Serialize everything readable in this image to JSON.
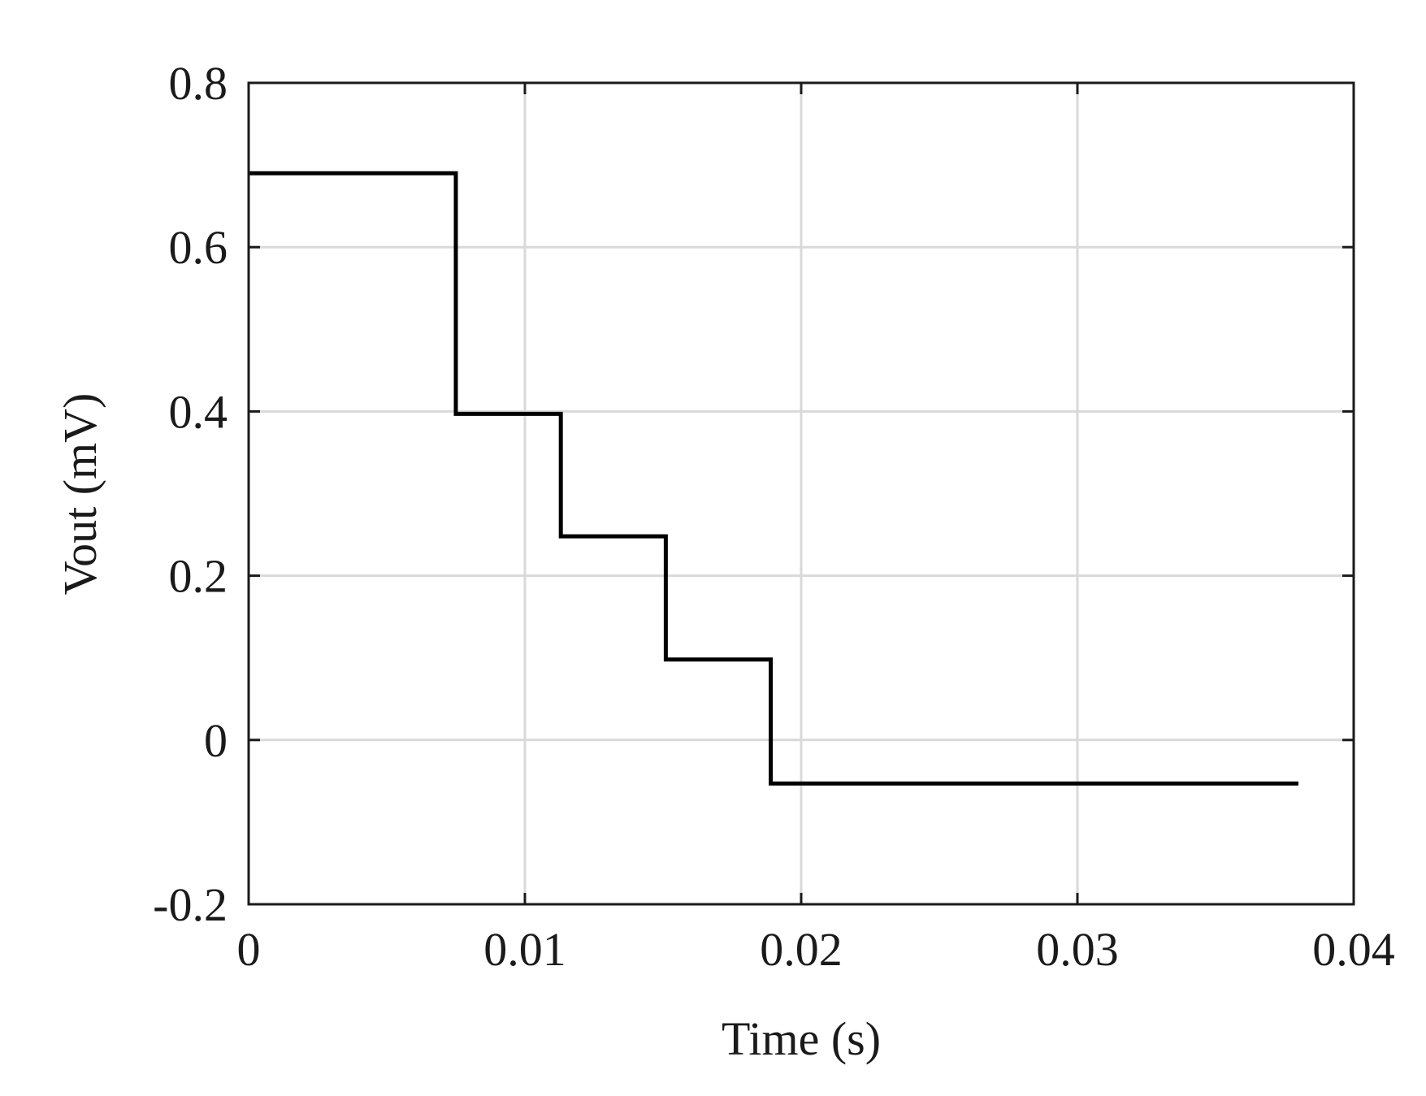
{
  "chart_data": {
    "type": "line",
    "x_label": "Time (s)",
    "y_label": "Vout (mV)",
    "x": [
      0,
      0.0075,
      0.0075,
      0.0113,
      0.0113,
      0.0151,
      0.0151,
      0.0189,
      0.0189,
      0.038
    ],
    "values": [
      0.69,
      0.69,
      0.397,
      0.397,
      0.248,
      0.248,
      0.098,
      0.098,
      -0.053,
      -0.053
    ],
    "color": "#000000",
    "xlim": [
      0,
      0.04
    ],
    "ylim": [
      -0.2,
      0.8
    ],
    "xticks": [
      0,
      0.01,
      0.02,
      0.03,
      0.04
    ],
    "yticks": [
      -0.2,
      0,
      0.2,
      0.4,
      0.6,
      0.8
    ],
    "grid": true
  }
}
